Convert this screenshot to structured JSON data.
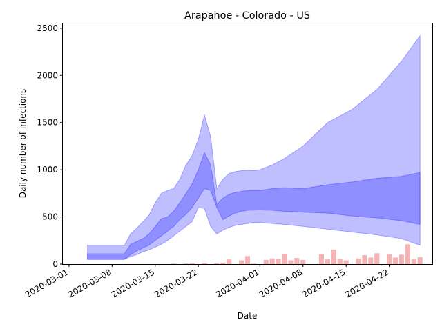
{
  "chart_data": {
    "type": "area",
    "title": "Arapahoe - Colorado - US",
    "xlabel": "Date",
    "ylabel": "Daily number of infections",
    "x_tick_labels": [
      "2020-03-01",
      "2020-03-08",
      "2020-03-15",
      "2020-03-22",
      "2020-04-01",
      "2020-04-08",
      "2020-04-15",
      "2020-04-22"
    ],
    "x_tick_dates": [
      "2020-03-01",
      "2020-03-08",
      "2020-03-15",
      "2020-03-22",
      "2020-04-01",
      "2020-04-08",
      "2020-04-15",
      "2020-04-22"
    ],
    "y_tick_labels": [
      "0",
      "500",
      "1000",
      "1500",
      "2000",
      "2500"
    ],
    "y_tick_values": [
      0,
      500,
      1000,
      1500,
      2000,
      2500
    ],
    "xlim": [
      "2020-02-29",
      "2020-04-29"
    ],
    "ylim": [
      0,
      2550
    ],
    "grid": false,
    "legend": "none",
    "colors": {
      "band": "#0000ff",
      "bars": "#f08080"
    },
    "bands": [
      {
        "x": [
          "2020-03-04",
          "2020-03-10",
          "2020-03-11",
          "2020-03-12",
          "2020-03-13",
          "2020-03-14",
          "2020-03-15",
          "2020-03-16",
          "2020-03-17",
          "2020-03-18",
          "2020-03-19",
          "2020-03-20",
          "2020-03-21",
          "2020-03-22",
          "2020-03-23",
          "2020-03-24",
          "2020-03-25",
          "2020-03-26",
          "2020-03-27",
          "2020-03-28",
          "2020-03-29",
          "2020-03-30",
          "2020-03-31",
          "2020-04-01",
          "2020-04-03",
          "2020-04-05",
          "2020-04-08",
          "2020-04-12",
          "2020-04-16",
          "2020-04-20",
          "2020-04-24",
          "2020-04-27"
        ],
        "lower": [
          50,
          50,
          80,
          100,
          130,
          150,
          180,
          210,
          250,
          300,
          350,
          400,
          450,
          600,
          590,
          400,
          320,
          360,
          390,
          410,
          420,
          430,
          440,
          440,
          430,
          420,
          400,
          370,
          340,
          310,
          270,
          200
        ],
        "upper": [
          200,
          200,
          320,
          380,
          450,
          520,
          650,
          750,
          780,
          800,
          900,
          1050,
          1150,
          1320,
          1580,
          1350,
          800,
          900,
          960,
          980,
          990,
          995,
          990,
          1000,
          1050,
          1120,
          1250,
          1500,
          1640,
          1850,
          2150,
          2420
        ]
      },
      {
        "x": [
          "2020-03-04",
          "2020-03-10",
          "2020-03-11",
          "2020-03-12",
          "2020-03-13",
          "2020-03-14",
          "2020-03-15",
          "2020-03-16",
          "2020-03-17",
          "2020-03-18",
          "2020-03-19",
          "2020-03-20",
          "2020-03-21",
          "2020-03-22",
          "2020-03-23",
          "2020-03-24",
          "2020-03-25",
          "2020-03-26",
          "2020-03-27",
          "2020-03-28",
          "2020-03-29",
          "2020-03-30",
          "2020-04-01",
          "2020-04-03",
          "2020-04-05",
          "2020-04-08",
          "2020-04-12",
          "2020-04-16",
          "2020-04-20",
          "2020-04-24",
          "2020-04-27"
        ],
        "lower": [
          50,
          50,
          100,
          140,
          170,
          200,
          250,
          300,
          350,
          400,
          470,
          530,
          600,
          700,
          800,
          780,
          600,
          470,
          510,
          540,
          560,
          570,
          575,
          570,
          560,
          550,
          540,
          510,
          490,
          460,
          420
        ],
        "upper": [
          110,
          110,
          210,
          240,
          270,
          320,
          400,
          480,
          500,
          560,
          650,
          750,
          850,
          1000,
          1180,
          1050,
          630,
          700,
          740,
          760,
          770,
          780,
          780,
          800,
          810,
          800,
          840,
          870,
          910,
          930,
          970
        ]
      }
    ],
    "bar_x": [
      "2020-03-18",
      "2020-03-20",
      "2020-03-21",
      "2020-03-23",
      "2020-03-25",
      "2020-03-26",
      "2020-03-27",
      "2020-03-29",
      "2020-03-30",
      "2020-03-31",
      "2020-04-02",
      "2020-04-03",
      "2020-04-04",
      "2020-04-05",
      "2020-04-06",
      "2020-04-07",
      "2020-04-08",
      "2020-04-09",
      "2020-04-11",
      "2020-04-12",
      "2020-04-13",
      "2020-04-14",
      "2020-04-15",
      "2020-04-17",
      "2020-04-18",
      "2020-04-19",
      "2020-04-20",
      "2020-04-22",
      "2020-04-23",
      "2020-04-24",
      "2020-04-25",
      "2020-04-26",
      "2020-04-27"
    ],
    "bar_values": [
      5,
      5,
      10,
      8,
      10,
      15,
      50,
      40,
      85,
      5,
      45,
      60,
      55,
      110,
      40,
      65,
      45,
      0,
      105,
      50,
      155,
      55,
      40,
      60,
      95,
      70,
      115,
      105,
      70,
      100,
      210,
      50,
      75
    ]
  }
}
